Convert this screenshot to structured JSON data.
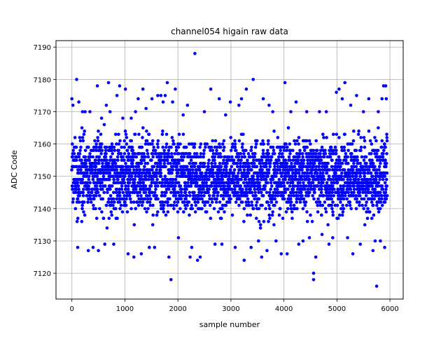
{
  "chart_data": {
    "type": "scatter",
    "title": "channel054 higain raw data",
    "xlabel": "sample number",
    "ylabel": "ADC Code",
    "xlim": [
      -300,
      6250
    ],
    "ylim": [
      7112,
      7192
    ],
    "x_ticks": [
      0,
      1000,
      2000,
      3000,
      4000,
      5000,
      6000
    ],
    "y_ticks": [
      7120,
      7130,
      7140,
      7150,
      7160,
      7170,
      7180,
      7190
    ],
    "grid": true,
    "marker_color": "#0000ff",
    "series": [
      {
        "points": [
          [
            0,
            7174
          ],
          [
            20,
            7172
          ],
          [
            90,
            7180
          ],
          [
            110,
            7128
          ],
          [
            130,
            7173
          ],
          [
            200,
            7170
          ],
          [
            250,
            7170
          ],
          [
            310,
            7127
          ],
          [
            340,
            7170
          ],
          [
            400,
            7128
          ],
          [
            480,
            7178
          ],
          [
            500,
            7127
          ],
          [
            560,
            7168
          ],
          [
            620,
            7129
          ],
          [
            650,
            7172
          ],
          [
            690,
            7179
          ],
          [
            720,
            7170
          ],
          [
            790,
            7129
          ],
          [
            850,
            7175
          ],
          [
            900,
            7178
          ],
          [
            960,
            7168
          ],
          [
            1010,
            7177
          ],
          [
            1060,
            7126
          ],
          [
            1120,
            7168
          ],
          [
            1170,
            7125
          ],
          [
            1200,
            7170
          ],
          [
            1250,
            7174
          ],
          [
            1310,
            7126
          ],
          [
            1340,
            7177
          ],
          [
            1400,
            7171
          ],
          [
            1460,
            7128
          ],
          [
            1510,
            7174
          ],
          [
            1560,
            7128
          ],
          [
            1620,
            7175
          ],
          [
            1680,
            7175
          ],
          [
            1720,
            7173
          ],
          [
            1760,
            7175
          ],
          [
            1800,
            7179
          ],
          [
            1830,
            7125
          ],
          [
            1870,
            7118
          ],
          [
            1900,
            7173
          ],
          [
            1950,
            7177
          ],
          [
            2010,
            7131
          ],
          [
            2100,
            7169
          ],
          [
            2180,
            7172
          ],
          [
            2230,
            7125
          ],
          [
            2260,
            7128
          ],
          [
            2320,
            7188
          ],
          [
            2370,
            7124
          ],
          [
            2420,
            7125
          ],
          [
            2500,
            7170
          ],
          [
            2620,
            7177
          ],
          [
            2700,
            7129
          ],
          [
            2780,
            7174
          ],
          [
            2830,
            7129
          ],
          [
            2900,
            7169
          ],
          [
            2990,
            7173
          ],
          [
            3080,
            7128
          ],
          [
            3150,
            7172
          ],
          [
            3200,
            7174
          ],
          [
            3250,
            7124
          ],
          [
            3290,
            7177
          ],
          [
            3380,
            7128
          ],
          [
            3420,
            7180
          ],
          [
            3520,
            7130
          ],
          [
            3580,
            7125
          ],
          [
            3610,
            7174
          ],
          [
            3680,
            7127
          ],
          [
            3720,
            7172
          ],
          [
            3790,
            7170
          ],
          [
            3850,
            7130
          ],
          [
            3950,
            7126
          ],
          [
            4020,
            7179
          ],
          [
            4060,
            7126
          ],
          [
            4130,
            7170
          ],
          [
            4230,
            7173
          ],
          [
            4280,
            7129
          ],
          [
            4360,
            7130
          ],
          [
            4430,
            7170
          ],
          [
            4480,
            7131
          ],
          [
            4560,
            7120
          ],
          [
            4560,
            7118
          ],
          [
            4600,
            7125
          ],
          [
            4670,
            7170
          ],
          [
            4720,
            7132
          ],
          [
            4800,
            7170
          ],
          [
            4850,
            7129
          ],
          [
            4920,
            7131
          ],
          [
            4990,
            7176
          ],
          [
            5040,
            7177
          ],
          [
            5100,
            7174
          ],
          [
            5150,
            7179
          ],
          [
            5200,
            7131
          ],
          [
            5260,
            7172
          ],
          [
            5300,
            7126
          ],
          [
            5370,
            7175
          ],
          [
            5440,
            7129
          ],
          [
            5500,
            7170
          ],
          [
            5600,
            7174
          ],
          [
            5680,
            7127
          ],
          [
            5720,
            7130
          ],
          [
            5750,
            7116
          ],
          [
            5780,
            7170
          ],
          [
            5820,
            7130
          ],
          [
            5850,
            7174
          ],
          [
            5880,
            7178
          ],
          [
            5900,
            7128
          ],
          [
            5920,
            7178
          ],
          [
            5930,
            7174
          ]
        ]
      }
    ],
    "dense_band": {
      "x_range": [
        0,
        5950
      ],
      "y_range": [
        7132,
        7166
      ],
      "center": 7150,
      "count": 3200
    }
  }
}
